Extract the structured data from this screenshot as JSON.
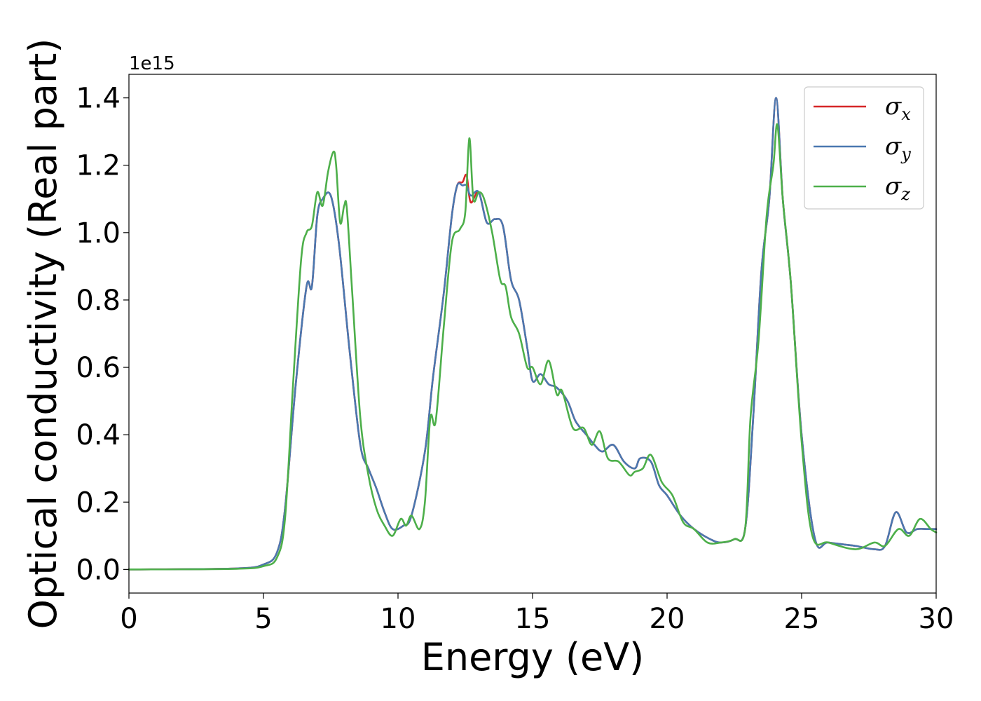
{
  "chart_data": {
    "type": "line",
    "title": "",
    "xlabel": "Energy (eV)",
    "ylabel": "Optical conductivity (Real part)",
    "y_offset_label": "1e15",
    "xlim": [
      0,
      30
    ],
    "ylim": [
      -0.07,
      1.47
    ],
    "x_ticks": [
      0,
      5,
      10,
      15,
      20,
      25,
      30
    ],
    "x_tick_labels": [
      "0",
      "5",
      "10",
      "15",
      "20",
      "25",
      "30"
    ],
    "y_ticks": [
      0.0,
      0.2,
      0.4,
      0.6,
      0.8,
      1.0,
      1.2,
      1.4
    ],
    "y_tick_labels": [
      "0.0",
      "0.2",
      "0.4",
      "0.6",
      "0.8",
      "1.0",
      "1.2",
      "1.4"
    ],
    "grid": false,
    "legend_position": "top-right",
    "series": [
      {
        "name": "σ",
        "subscript": "x",
        "color": "#d62728",
        "x": [
          0,
          4,
          5,
          5.5,
          5.8,
          6.2,
          6.6,
          6.8,
          7.0,
          7.2,
          7.5,
          7.8,
          8.2,
          8.6,
          8.9,
          9.2,
          9.5,
          9.8,
          10.2,
          10.5,
          11.0,
          11.3,
          11.7,
          12.0,
          12.2,
          12.4,
          12.55,
          12.7,
          13.0,
          13.3,
          13.6,
          13.9,
          14.2,
          14.5,
          14.8,
          15.0,
          15.3,
          15.6,
          15.9,
          16.3,
          16.6,
          17.0,
          17.3,
          17.6,
          18.0,
          18.4,
          18.8,
          19.0,
          19.4,
          19.7,
          20.0,
          20.5,
          21.0,
          21.6,
          22.0,
          22.5,
          22.9,
          23.2,
          23.5,
          23.8,
          24.05,
          24.3,
          24.6,
          25.0,
          25.5,
          26.0,
          27.0,
          27.7,
          28.1,
          28.5,
          28.9,
          29.3,
          29.7,
          30.0
        ],
        "y": [
          0,
          0.003,
          0.015,
          0.05,
          0.18,
          0.55,
          0.84,
          0.84,
          1.05,
          1.1,
          1.11,
          0.97,
          0.65,
          0.37,
          0.3,
          0.24,
          0.17,
          0.12,
          0.13,
          0.16,
          0.35,
          0.57,
          0.82,
          1.05,
          1.14,
          1.15,
          1.17,
          1.09,
          1.12,
          1.03,
          1.04,
          1.02,
          0.86,
          0.8,
          0.66,
          0.56,
          0.58,
          0.55,
          0.54,
          0.5,
          0.44,
          0.4,
          0.37,
          0.35,
          0.37,
          0.32,
          0.3,
          0.33,
          0.32,
          0.25,
          0.22,
          0.16,
          0.12,
          0.09,
          0.08,
          0.09,
          0.12,
          0.45,
          0.88,
          1.1,
          1.4,
          1.1,
          0.85,
          0.4,
          0.09,
          0.08,
          0.07,
          0.06,
          0.07,
          0.17,
          0.11,
          0.12,
          0.12,
          0.12
        ]
      },
      {
        "name": "σ",
        "subscript": "y",
        "color": "#4a78b0",
        "x": [
          0,
          4,
          5,
          5.5,
          5.8,
          6.2,
          6.6,
          6.8,
          7.0,
          7.2,
          7.5,
          7.8,
          8.2,
          8.6,
          8.9,
          9.2,
          9.5,
          9.8,
          10.2,
          10.5,
          11.0,
          11.3,
          11.7,
          12.0,
          12.2,
          12.4,
          12.55,
          12.7,
          13.0,
          13.3,
          13.6,
          13.9,
          14.2,
          14.5,
          14.8,
          15.0,
          15.3,
          15.6,
          15.9,
          16.3,
          16.6,
          17.0,
          17.3,
          17.6,
          18.0,
          18.4,
          18.8,
          19.0,
          19.4,
          19.7,
          20.0,
          20.5,
          21.0,
          21.6,
          22.0,
          22.5,
          22.9,
          23.2,
          23.5,
          23.8,
          24.05,
          24.3,
          24.6,
          25.0,
          25.5,
          26.0,
          27.0,
          27.7,
          28.1,
          28.5,
          28.9,
          29.3,
          29.7,
          30.0
        ],
        "y": [
          0,
          0.003,
          0.015,
          0.05,
          0.18,
          0.55,
          0.84,
          0.84,
          1.05,
          1.1,
          1.11,
          0.97,
          0.65,
          0.37,
          0.3,
          0.24,
          0.17,
          0.12,
          0.13,
          0.16,
          0.35,
          0.57,
          0.82,
          1.05,
          1.14,
          1.14,
          1.14,
          1.11,
          1.12,
          1.03,
          1.04,
          1.02,
          0.86,
          0.8,
          0.66,
          0.56,
          0.58,
          0.55,
          0.54,
          0.5,
          0.44,
          0.4,
          0.37,
          0.35,
          0.37,
          0.32,
          0.3,
          0.33,
          0.32,
          0.25,
          0.22,
          0.16,
          0.12,
          0.09,
          0.08,
          0.09,
          0.12,
          0.45,
          0.88,
          1.1,
          1.4,
          1.1,
          0.85,
          0.4,
          0.09,
          0.08,
          0.07,
          0.06,
          0.07,
          0.17,
          0.11,
          0.12,
          0.12,
          0.12
        ]
      },
      {
        "name": "σ",
        "subscript": "z",
        "color": "#4daf4a",
        "x": [
          0,
          4,
          5,
          5.5,
          5.8,
          6.1,
          6.4,
          6.6,
          6.8,
          7.0,
          7.2,
          7.4,
          7.6,
          7.7,
          7.85,
          8.0,
          8.1,
          8.3,
          8.6,
          8.9,
          9.2,
          9.5,
          9.8,
          10.1,
          10.3,
          10.5,
          10.8,
          11.0,
          11.2,
          11.4,
          11.7,
          12.0,
          12.3,
          12.5,
          12.65,
          12.8,
          13.0,
          13.2,
          13.5,
          13.8,
          14.0,
          14.2,
          14.5,
          14.8,
          15.0,
          15.3,
          15.6,
          15.9,
          16.1,
          16.5,
          16.9,
          17.2,
          17.5,
          17.8,
          18.2,
          18.6,
          18.8,
          19.1,
          19.4,
          19.8,
          20.2,
          20.6,
          21.0,
          21.5,
          22.0,
          22.5,
          22.9,
          23.1,
          23.4,
          23.7,
          23.95,
          24.1,
          24.3,
          24.6,
          25.0,
          25.4,
          26.0,
          27.0,
          27.7,
          28.1,
          28.6,
          29.0,
          29.4,
          29.8,
          30.0
        ],
        "y": [
          0,
          0.002,
          0.01,
          0.035,
          0.15,
          0.55,
          0.92,
          1.0,
          1.02,
          1.12,
          1.08,
          1.18,
          1.24,
          1.2,
          1.03,
          1.08,
          1.07,
          0.82,
          0.45,
          0.28,
          0.18,
          0.13,
          0.1,
          0.15,
          0.13,
          0.16,
          0.12,
          0.2,
          0.45,
          0.44,
          0.72,
          0.97,
          1.01,
          1.06,
          1.28,
          1.1,
          1.12,
          1.1,
          1.0,
          0.86,
          0.84,
          0.75,
          0.7,
          0.6,
          0.6,
          0.55,
          0.62,
          0.52,
          0.53,
          0.42,
          0.42,
          0.37,
          0.41,
          0.33,
          0.32,
          0.28,
          0.29,
          0.3,
          0.34,
          0.26,
          0.22,
          0.14,
          0.12,
          0.08,
          0.08,
          0.09,
          0.12,
          0.45,
          0.68,
          1.05,
          1.2,
          1.32,
          1.1,
          0.85,
          0.38,
          0.1,
          0.08,
          0.06,
          0.08,
          0.07,
          0.12,
          0.1,
          0.15,
          0.12,
          0.11
        ]
      }
    ]
  }
}
